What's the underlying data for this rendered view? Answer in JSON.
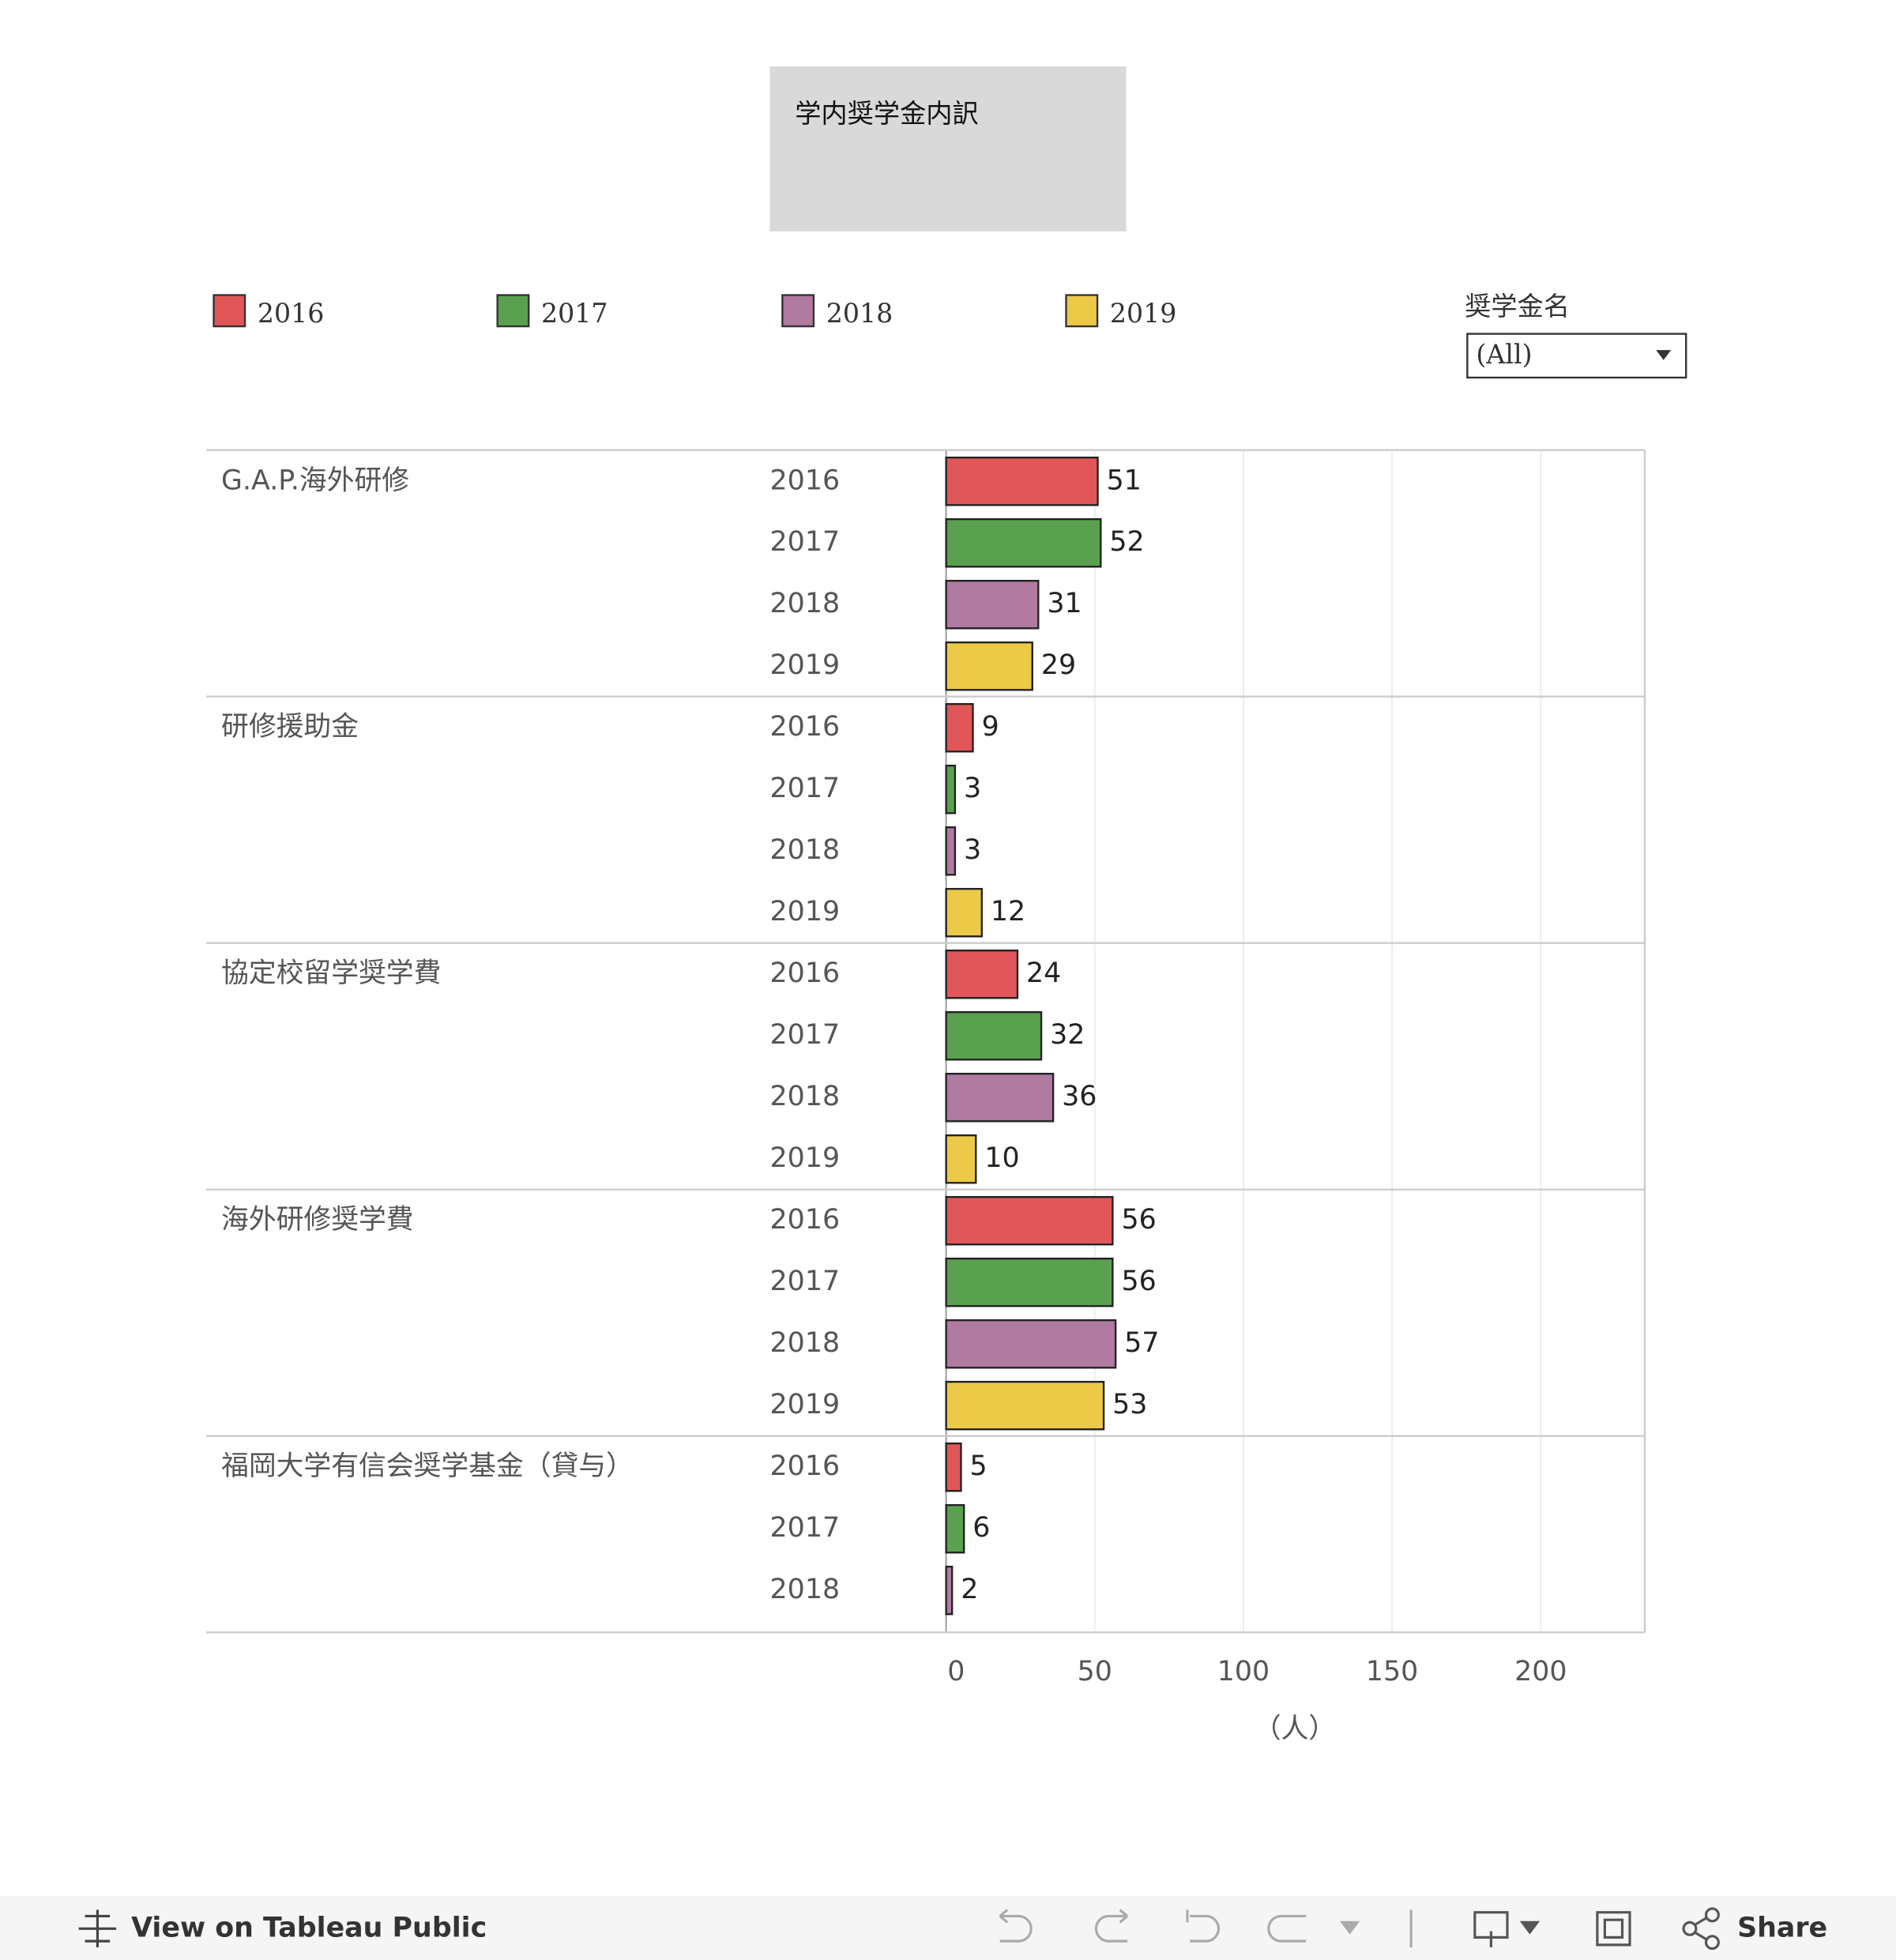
{
  "filter": {
    "label": "奨学金名",
    "value": "(All)"
  },
  "footer": {
    "link": "View on Tableau Public",
    "share": "Share"
  },
  "chart_data": {
    "type": "bar",
    "title": "学内奨学金内訳",
    "categories": [
      "G.A.P.海外研修",
      "研修援助金",
      "協定校留学奨学費",
      "海外研修奨学費",
      "福岡大学有信会奨学基金（貸与）"
    ],
    "series": [
      {
        "name": "2016",
        "color": "#e15759",
        "values": [
          51,
          9,
          24,
          56,
          5
        ]
      },
      {
        "name": "2017",
        "color": "#59a14f",
        "values": [
          52,
          3,
          32,
          56,
          6
        ]
      },
      {
        "name": "2018",
        "color": "#b07aa1",
        "values": [
          31,
          3,
          36,
          57,
          2
        ]
      },
      {
        "name": "2019",
        "color": "#edc948",
        "values": [
          29,
          12,
          10,
          53,
          null
        ]
      }
    ],
    "xlim": [
      0,
      235
    ],
    "xticks": [
      0,
      50,
      100,
      150,
      200
    ],
    "xlabel": "（人）",
    "grid": true,
    "legend": "top"
  }
}
